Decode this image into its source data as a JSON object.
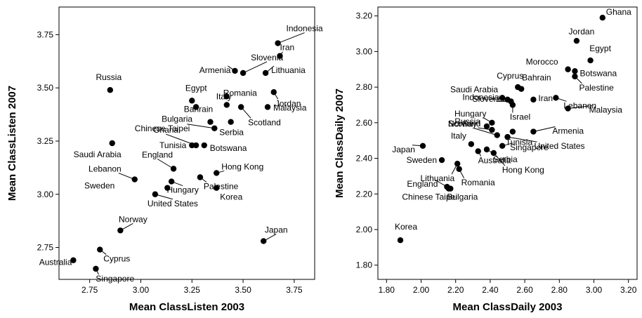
{
  "chart_data": [
    {
      "type": "scatter",
      "xlabel": "Mean ClassListen 2003",
      "ylabel": "Mean ClassListen 2007",
      "xlim": [
        2.6,
        3.85
      ],
      "ylim": [
        2.6,
        3.88
      ],
      "xticks": [
        "2.75",
        "3.00",
        "3.25",
        "3.50",
        "3.75"
      ],
      "yticks": [
        "2.75",
        "3.00",
        "3.25",
        "3.50",
        "3.75"
      ],
      "points": [
        {
          "label": "Indonesia",
          "x": 3.67,
          "y": 3.71
        },
        {
          "label": "Iran",
          "x": 3.68,
          "y": 3.65
        },
        {
          "label": "Slovenia",
          "x": 3.5,
          "y": 3.57
        },
        {
          "label": "Armenia",
          "x": 3.46,
          "y": 3.58
        },
        {
          "label": "Lithuania",
          "x": 3.61,
          "y": 3.57
        },
        {
          "label": "Jordan",
          "x": 3.65,
          "y": 3.48
        },
        {
          "label": "Russia",
          "x": 2.85,
          "y": 3.49
        },
        {
          "label": "Romania",
          "x": 3.42,
          "y": 3.46
        },
        {
          "label": "Egypt",
          "x": 3.25,
          "y": 3.44
        },
        {
          "label": "Malaysia",
          "x": 3.62,
          "y": 3.41
        },
        {
          "label": "Bulgaria",
          "x": 3.27,
          "y": 3.41
        },
        {
          "label": "Scotland",
          "x": 3.49,
          "y": 3.41
        },
        {
          "label": "Italy",
          "x": 3.42,
          "y": 3.42
        },
        {
          "label": "Chinese Taipei",
          "x": 3.36,
          "y": 3.31
        },
        {
          "label": "Serbia",
          "x": 3.44,
          "y": 3.34
        },
        {
          "label": "Bahrain",
          "x": 3.34,
          "y": 3.34
        },
        {
          "label": "Saudi Arabia",
          "x": 2.86,
          "y": 3.24
        },
        {
          "label": "Tunisia",
          "x": 3.25,
          "y": 3.23
        },
        {
          "label": "Botswana",
          "x": 3.31,
          "y": 3.23
        },
        {
          "label": "Ghana",
          "x": 3.27,
          "y": 3.23
        },
        {
          "label": "England",
          "x": 3.16,
          "y": 3.12
        },
        {
          "label": "Hong Kong",
          "x": 3.37,
          "y": 3.1
        },
        {
          "label": "Lebanon",
          "x": 2.97,
          "y": 3.07
        },
        {
          "label": "Palestine",
          "x": 3.29,
          "y": 3.08
        },
        {
          "label": "Hungary",
          "x": 3.15,
          "y": 3.06
        },
        {
          "label": "Sweden",
          "x": 3.13,
          "y": 3.03
        },
        {
          "label": "Korea",
          "x": 3.37,
          "y": 3.03
        },
        {
          "label": "United States",
          "x": 3.07,
          "y": 3.0
        },
        {
          "label": "Norway",
          "x": 2.9,
          "y": 2.83
        },
        {
          "label": "Japan",
          "x": 3.6,
          "y": 2.78
        },
        {
          "label": "Australia",
          "x": 2.67,
          "y": 2.69
        },
        {
          "label": "Cyprus",
          "x": 2.8,
          "y": 2.74
        },
        {
          "label": "Singapore",
          "x": 2.78,
          "y": 2.65
        }
      ]
    },
    {
      "type": "scatter",
      "xlabel": "Mean ClassDaily 2003",
      "ylabel": "Mean ClassDaily 2007",
      "xlim": [
        1.75,
        3.25
      ],
      "ylim": [
        1.72,
        3.25
      ],
      "xticks": [
        "1.80",
        "2.00",
        "2.20",
        "2.40",
        "2.60",
        "2.80",
        "3.00",
        "3.20"
      ],
      "yticks": [
        "1.80",
        "2.00",
        "2.20",
        "2.40",
        "2.60",
        "2.80",
        "3.00",
        "3.20"
      ],
      "points": [
        {
          "label": "Ghana",
          "x": 3.05,
          "y": 3.19
        },
        {
          "label": "Jordan",
          "x": 2.9,
          "y": 3.06
        },
        {
          "label": "Egypt",
          "x": 2.98,
          "y": 2.95
        },
        {
          "label": "Morocco",
          "x": 2.85,
          "y": 2.9
        },
        {
          "label": "Botswana",
          "x": 2.89,
          "y": 2.89
        },
        {
          "label": "Palestine",
          "x": 2.89,
          "y": 2.86
        },
        {
          "label": "Cyprus",
          "x": 2.56,
          "y": 2.8
        },
        {
          "label": "Bahrain",
          "x": 2.58,
          "y": 2.79
        },
        {
          "label": "Saudi Arabia",
          "x": 2.47,
          "y": 2.74
        },
        {
          "label": "Slovenia",
          "x": 2.5,
          "y": 2.73
        },
        {
          "label": "Iran",
          "x": 2.65,
          "y": 2.73
        },
        {
          "label": "Lebanon",
          "x": 2.78,
          "y": 2.74
        },
        {
          "label": "Malaysia",
          "x": 2.85,
          "y": 2.68
        },
        {
          "label": "Indonesia",
          "x": 2.52,
          "y": 2.72
        },
        {
          "label": "Israel",
          "x": 2.53,
          "y": 2.7
        },
        {
          "label": "Hungary",
          "x": 2.41,
          "y": 2.6
        },
        {
          "label": "Tunisia",
          "x": 2.53,
          "y": 2.55
        },
        {
          "label": "Russia",
          "x": 2.38,
          "y": 2.58
        },
        {
          "label": "Armenia",
          "x": 2.65,
          "y": 2.55
        },
        {
          "label": "Scotland",
          "x": 2.41,
          "y": 2.56
        },
        {
          "label": "Norway",
          "x": 2.44,
          "y": 2.53
        },
        {
          "label": "United States",
          "x": 2.5,
          "y": 2.52
        },
        {
          "label": "Singapore",
          "x": 2.47,
          "y": 2.47
        },
        {
          "label": "Japan",
          "x": 2.01,
          "y": 2.47
        },
        {
          "label": "Italy",
          "x": 2.29,
          "y": 2.48
        },
        {
          "label": "Serbia",
          "x": 2.38,
          "y": 2.45
        },
        {
          "label": "Sweden",
          "x": 2.12,
          "y": 2.39
        },
        {
          "label": "Australia",
          "x": 2.33,
          "y": 2.44
        },
        {
          "label": "Hong Kong",
          "x": 2.42,
          "y": 2.43
        },
        {
          "label": "Lithuania",
          "x": 2.21,
          "y": 2.37
        },
        {
          "label": "Romania",
          "x": 2.22,
          "y": 2.34
        },
        {
          "label": "England",
          "x": 2.15,
          "y": 2.24
        },
        {
          "label": "Chinese Taipei",
          "x": 2.16,
          "y": 2.23
        },
        {
          "label": "Bulgaria",
          "x": 2.17,
          "y": 2.23
        },
        {
          "label": "Korea",
          "x": 1.88,
          "y": 1.94
        }
      ]
    }
  ]
}
